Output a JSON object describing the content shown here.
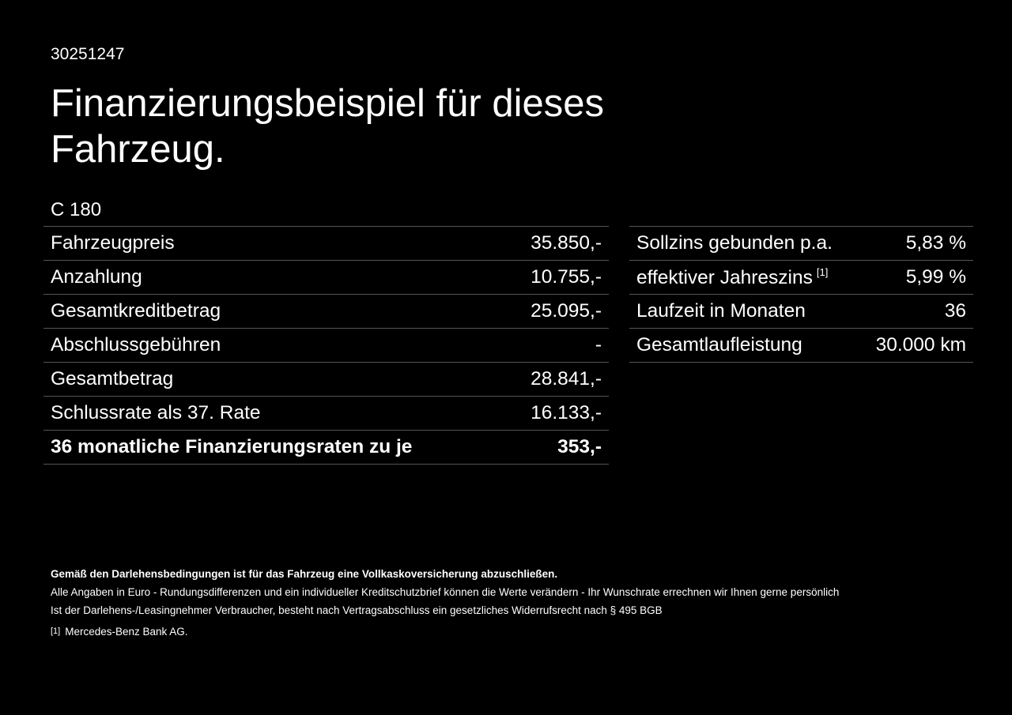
{
  "header": {
    "id": "30251247",
    "title": "Finanzierungsbeispiel für dieses Fahrzeug.",
    "model": "C 180"
  },
  "left_table": {
    "rows": [
      {
        "label": "Fahrzeugpreis",
        "value": "35.850,-"
      },
      {
        "label": "Anzahlung",
        "value": "10.755,-"
      },
      {
        "label": "Gesamtkreditbetrag",
        "value": "25.095,-"
      },
      {
        "label": "Abschlussgebühren",
        "value": "-"
      },
      {
        "label": "Gesamtbetrag",
        "value": "28.841,-"
      },
      {
        "label": "Schlussrate als 37. Rate",
        "value": "16.133,-"
      },
      {
        "label": "36 monatliche Finanzierungsraten zu je",
        "value": "353,-"
      }
    ]
  },
  "right_table": {
    "rows": [
      {
        "label": "Sollzins gebunden p.a.",
        "value": "5,83 %"
      },
      {
        "label": "effektiver Jahreszins",
        "note": "[1]",
        "value": "5,99 %"
      },
      {
        "label": "Laufzeit in Monaten",
        "value": "36"
      },
      {
        "label": "Gesamtlaufleistung",
        "value": "30.000 km"
      }
    ]
  },
  "footer": {
    "bold_line": "Gemäß den Darlehensbedingungen ist für das Fahrzeug eine Vollkaskoversicherung abzuschließen.",
    "lines": [
      "Alle Angaben in Euro - Rundungsdifferenzen und ein individueller Kreditschutzbrief können die Werte verändern - Ihr Wunschrate errechnen wir Ihnen gerne persönlich",
      "Ist der Darlehens-/Leasingnehmer Verbraucher, besteht nach Vertragsabschluss ein gesetzliches Widerrufsrecht nach § 495 BGB"
    ],
    "footnote": {
      "marker": "[1]",
      "text": "Mercedes-Benz Bank AG."
    }
  }
}
